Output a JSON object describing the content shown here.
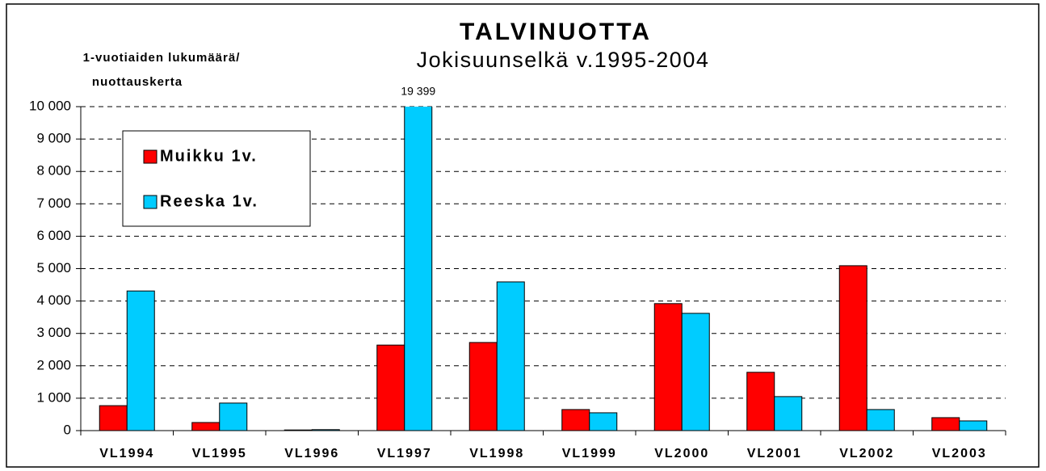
{
  "chart_data": {
    "type": "bar",
    "title": "TALVINUOTTA",
    "subtitle": "Jokisuunselkä v.1995-2004",
    "ylabel": [
      "1-vuotiaiden lukumäärä/",
      "nuottauskerta"
    ],
    "categories": [
      "VL1994",
      "VL1995",
      "VL1996",
      "VL1997",
      "VL1998",
      "VL1999",
      "VL2000",
      "VL2001",
      "VL2002",
      "VL2003"
    ],
    "series": [
      {
        "name": "Muikku 1v.",
        "color": "#ff0000",
        "values": [
          770,
          250,
          20,
          2640,
          2720,
          650,
          3920,
          1800,
          5090,
          400
        ]
      },
      {
        "name": "Reeska 1v.",
        "color": "#00ccff",
        "values": [
          4310,
          850,
          30,
          19399,
          4590,
          550,
          3620,
          1050,
          650,
          300
        ],
        "value_labels": [
          null,
          null,
          null,
          "19 399",
          null,
          null,
          null,
          null,
          null,
          null
        ]
      }
    ],
    "ylim": [
      0,
      10000
    ],
    "yticks": [
      0,
      {
        "value": 1000,
        "label": "1 000"
      },
      {
        "value": 2000,
        "label": "2 000"
      },
      {
        "value": 3000,
        "label": "3 000"
      },
      {
        "value": 4000,
        "label": "4 000"
      },
      {
        "value": 5000,
        "label": "5 000"
      },
      {
        "value": 6000,
        "label": "6 000"
      },
      {
        "value": 7000,
        "label": "7 000"
      },
      {
        "value": 8000,
        "label": "8 000"
      },
      {
        "value": 9000,
        "label": "9 000"
      },
      {
        "value": 10000,
        "label": "10 000"
      }
    ],
    "grid": true,
    "legend": "upper left"
  }
}
